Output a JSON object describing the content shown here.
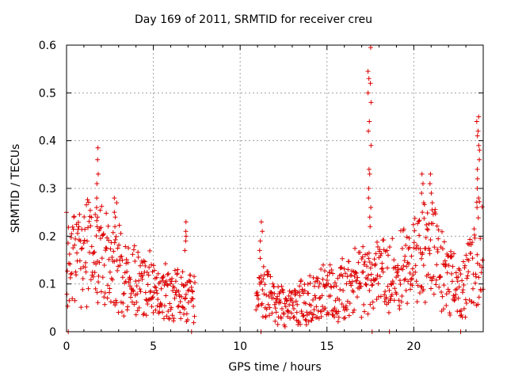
{
  "chart_data": {
    "type": "scatter",
    "title": "Day 169 of 2011, SRMTID for receiver creu",
    "xlabel": "GPS time / hours",
    "ylabel": "SRMTID / TECUs",
    "xlim": [
      0,
      24
    ],
    "ylim": [
      0,
      0.6
    ],
    "xticks": [
      0,
      5,
      10,
      15,
      20
    ],
    "yticks": [
      0,
      0.1,
      0.2,
      0.3,
      0.4,
      0.5,
      0.6
    ],
    "ytick_labels": [
      "0",
      "0.1",
      "0.2",
      "0.3",
      "0.4",
      "0.5",
      "0.6"
    ],
    "grid": true,
    "marker": "+",
    "color": "#dd0000",
    "gap_hours": [
      7.4,
      10.9
    ],
    "trend": [
      [
        0.0,
        0.17
      ],
      [
        1.0,
        0.16
      ],
      [
        2.0,
        0.17
      ],
      [
        3.0,
        0.13
      ],
      [
        4.0,
        0.11
      ],
      [
        5.0,
        0.09
      ],
      [
        6.0,
        0.08
      ],
      [
        7.3,
        0.07
      ],
      [
        11.0,
        0.1
      ],
      [
        12.0,
        0.06
      ],
      [
        13.0,
        0.05
      ],
      [
        14.0,
        0.07
      ],
      [
        15.0,
        0.08
      ],
      [
        16.0,
        0.09
      ],
      [
        17.0,
        0.11
      ],
      [
        18.0,
        0.12
      ],
      [
        19.0,
        0.12
      ],
      [
        20.0,
        0.14
      ],
      [
        21.0,
        0.17
      ],
      [
        22.0,
        0.1
      ],
      [
        23.0,
        0.1
      ],
      [
        24.0,
        0.2
      ]
    ],
    "spikes": [
      {
        "x": 1.8,
        "values": [
          0.385,
          0.36,
          0.33,
          0.31,
          0.28,
          0.26,
          0.24,
          0.22
        ]
      },
      {
        "x": 2.8,
        "values": [
          0.28,
          0.27,
          0.25,
          0.24,
          0.22
        ]
      },
      {
        "x": 6.9,
        "values": [
          0.23,
          0.21,
          0.2,
          0.19,
          0.17
        ]
      },
      {
        "x": 11.2,
        "values": [
          0.23,
          0.21,
          0.19,
          0.17
        ]
      },
      {
        "x": 17.45,
        "values": [
          0.595,
          0.545,
          0.53,
          0.52,
          0.5,
          0.48,
          0.44,
          0.42,
          0.39,
          0.34,
          0.33,
          0.3,
          0.28,
          0.26,
          0.24,
          0.22
        ]
      },
      {
        "x": 20.5,
        "values": [
          0.33,
          0.31,
          0.29,
          0.27,
          0.25
        ]
      },
      {
        "x": 21.0,
        "values": [
          0.33,
          0.31,
          0.29,
          0.27
        ]
      },
      {
        "x": 23.7,
        "values": [
          0.45,
          0.44,
          0.42,
          0.41,
          0.39,
          0.38,
          0.36,
          0.34,
          0.32,
          0.3,
          0.28,
          0.26
        ]
      }
    ],
    "zero_points": [
      0.1,
      7.2,
      11.2,
      17.6,
      18.6,
      22.7
    ]
  }
}
